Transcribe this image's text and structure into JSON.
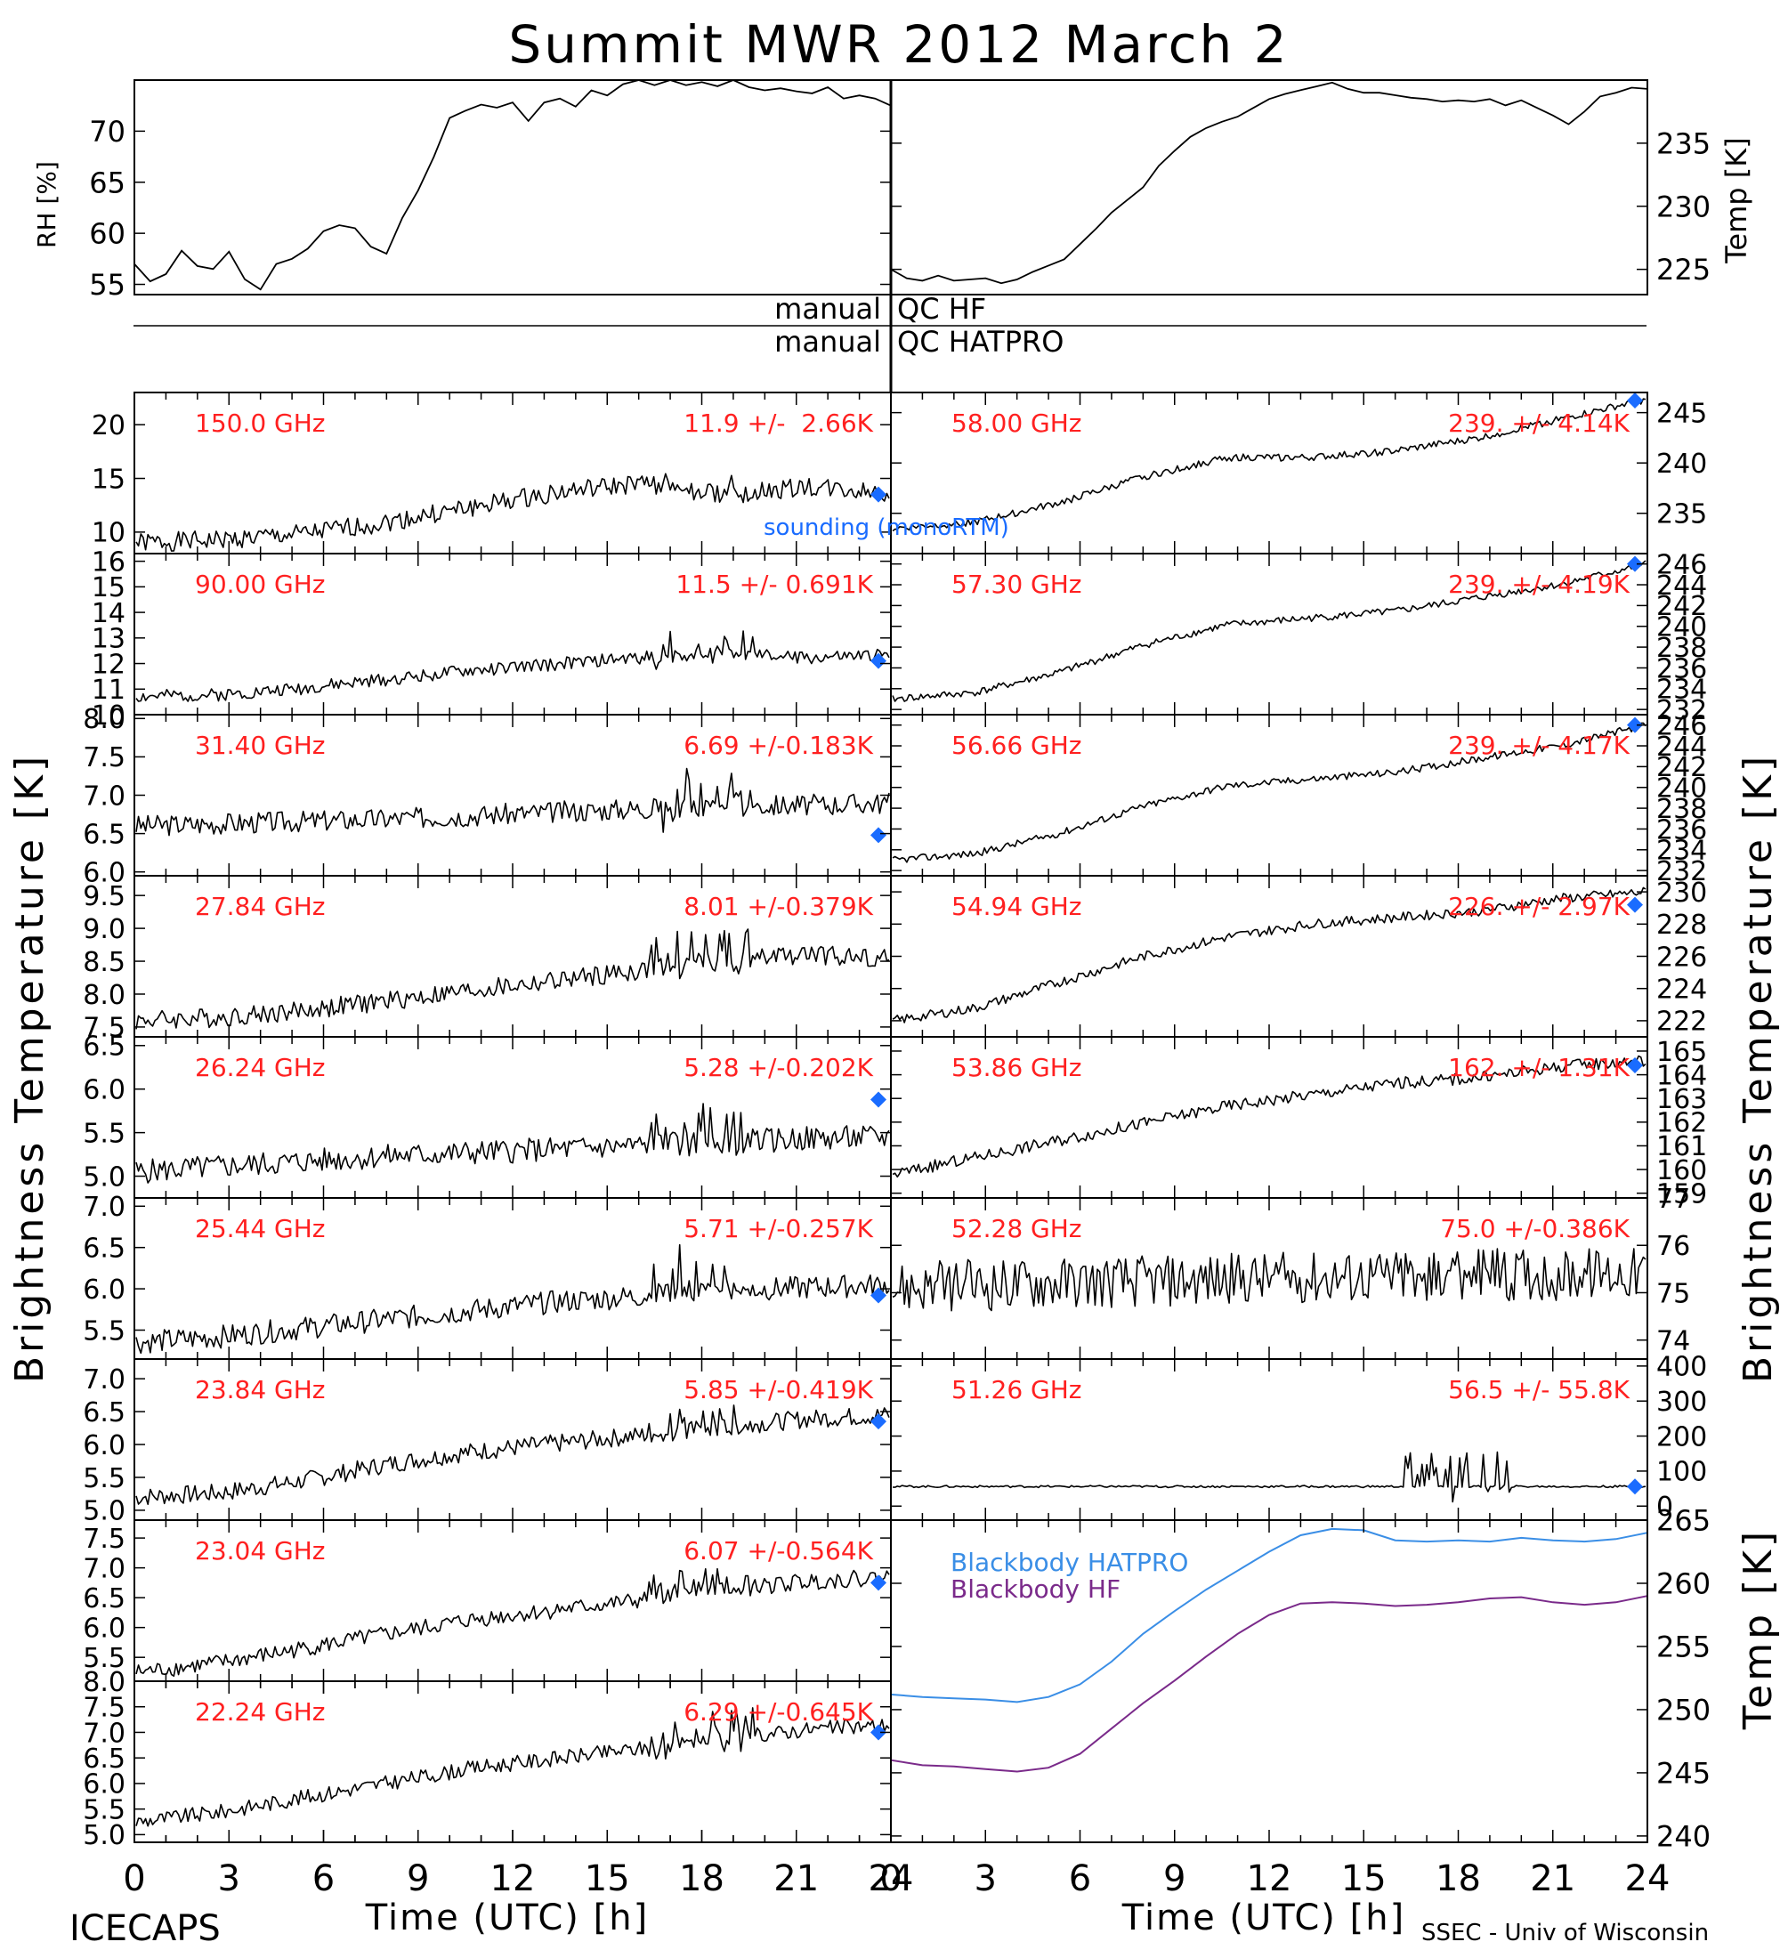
{
  "title": "Summit MWR 2012 March  2",
  "colors": {
    "axis": "#000000",
    "label_red": "#ff2020",
    "sounding_blue": "#1a6cff",
    "bb_hatpro": "#3a8ee6",
    "bb_hf": "#7a2a8a"
  },
  "footer": {
    "left": "ICECAPS",
    "right": "SSEC - Univ of Wisconsin"
  },
  "qc": {
    "hf": {
      "left": "manual",
      "right": "QC HF"
    },
    "hatpro": {
      "left": "manual",
      "right": "QC HATPRO"
    }
  },
  "legend": {
    "sounding": "sounding (monoRTM)"
  },
  "axis_titles": {
    "rh": "RH [%]",
    "temp": "Temp [K]",
    "tb_left": "Brightness Temperature [K]",
    "tb_right": "Brightness Temperature [K]",
    "bb_temp": "Temp [K]",
    "time": "Time (UTC) [h]"
  },
  "chart_data": {
    "type": "line",
    "x_unit": "h (UTC)",
    "xlim": [
      0,
      24
    ],
    "x_ticks": [
      "0",
      "3",
      "6",
      "9",
      "12",
      "15",
      "18",
      "21",
      "24"
    ],
    "top": {
      "rh": {
        "ylabel": "RH [%]",
        "ylim": [
          54,
          75
        ],
        "ticks": [
          "55",
          "60",
          "65",
          "70"
        ],
        "x": [
          0,
          0.5,
          1,
          1.5,
          2,
          2.5,
          3,
          3.5,
          4,
          4.5,
          5,
          5.5,
          6,
          6.5,
          7,
          7.5,
          8,
          8.5,
          9,
          9.5,
          10,
          10.5,
          11,
          11.5,
          12,
          12.5,
          13,
          13.5,
          14,
          14.5,
          15,
          15.5,
          16,
          16.5,
          17,
          17.5,
          18,
          18.5,
          19,
          19.5,
          20,
          20.5,
          21,
          21.5,
          22,
          22.5,
          23,
          23.5,
          24
        ],
        "values": [
          57,
          55.3,
          56,
          58.3,
          56.8,
          56.5,
          58.2,
          55.5,
          54.5,
          57,
          57.5,
          58.5,
          60.2,
          60.8,
          60.5,
          58.7,
          58,
          61.5,
          64.2,
          67.5,
          71.3,
          72,
          72.6,
          72.3,
          72.8,
          71,
          72.8,
          73.2,
          72.4,
          74,
          73.5,
          74.6,
          75,
          74.5,
          75,
          74.5,
          74.8,
          74.4,
          75,
          74.3,
          74,
          74.2,
          73.9,
          73.7,
          74.3,
          73.2,
          73.5,
          73.2,
          72.5
        ]
      },
      "temp": {
        "ylabel": "Temp [K]",
        "ylim": [
          223,
          240
        ],
        "ticks": [
          "225",
          "230",
          "235"
        ],
        "x": [
          0,
          0.5,
          1,
          1.5,
          2,
          2.5,
          3,
          3.5,
          4,
          4.5,
          5,
          5.5,
          6,
          6.5,
          7,
          7.5,
          8,
          8.5,
          9,
          9.5,
          10,
          10.5,
          11,
          11.5,
          12,
          12.5,
          13,
          13.5,
          14,
          14.5,
          15,
          15.5,
          16,
          16.5,
          17,
          17.5,
          18,
          18.5,
          19,
          19.5,
          20,
          20.5,
          21,
          21.5,
          22,
          22.5,
          23,
          23.5,
          24
        ],
        "values": [
          225,
          224.3,
          224.1,
          224.5,
          224.1,
          224.2,
          224.3,
          223.9,
          224.2,
          224.8,
          225.3,
          225.8,
          227,
          228.2,
          229.5,
          230.5,
          231.5,
          233.2,
          234.4,
          235.5,
          236.2,
          236.7,
          237.1,
          237.8,
          238.5,
          238.9,
          239.2,
          239.5,
          239.8,
          239.3,
          239,
          239,
          238.8,
          238.6,
          238.5,
          238.3,
          238.4,
          238.3,
          238.5,
          238,
          238.4,
          237.8,
          237.2,
          236.5,
          237.5,
          238.7,
          239,
          239.4,
          239.3
        ]
      }
    },
    "channels_left": [
      {
        "freq": "150.0 GHz",
        "stat": "11.9 +/-  2.66K",
        "ylim": [
          8,
          23
        ],
        "ticks": [
          "10",
          "15",
          "20"
        ],
        "start": 9,
        "end": 14.5,
        "shape": [
          0,
          0.05,
          0.15,
          0.35,
          0.6,
          0.85,
          1.0,
          0.8,
          0.95,
          0.85
        ],
        "noise": 0.9,
        "spike": 3,
        "sounding": 13.5
      },
      {
        "freq": "90.00 GHz",
        "stat": "11.5 +/- 0.691K",
        "ylim": [
          10,
          16.3
        ],
        "ticks": [
          "10",
          "11",
          "12",
          "13",
          "14",
          "15",
          "16"
        ],
        "start": 10.7,
        "end": 12.4,
        "shape": [
          0,
          0.05,
          0.2,
          0.4,
          0.6,
          0.75,
          0.9,
          1.0,
          0.9,
          0.95
        ],
        "noise": 0.25,
        "spike": 1.5,
        "sounding": 12.1
      },
      {
        "freq": "31.40 GHz",
        "stat": "6.69 +/-0.183K",
        "ylim": [
          5.95,
          8.05
        ],
        "ticks": [
          "6.0",
          "6.5",
          "7.0",
          "7.5",
          "8.0"
        ],
        "start": 6.6,
        "end": 6.9,
        "shape": [
          0,
          0.1,
          0.2,
          0.3,
          0.45,
          0.6,
          0.75,
          0.85,
          0.9,
          1.0
        ],
        "noise": 0.14,
        "spike": 0.7,
        "sounding": 6.48
      },
      {
        "freq": "27.84 GHz",
        "stat": "8.01 +/-0.379K",
        "ylim": [
          7.35,
          9.8
        ],
        "ticks": [
          "7.5",
          "8.0",
          "8.5",
          "9.0",
          "9.5"
        ],
        "start": 7.6,
        "end": 8.6,
        "shape": [
          0,
          0.05,
          0.15,
          0.3,
          0.45,
          0.6,
          0.75,
          0.9,
          1.0,
          0.95
        ],
        "noise": 0.15,
        "spike": 0.8,
        "sounding": null
      },
      {
        "freq": "26.24 GHz",
        "stat": "5.28 +/-0.202K",
        "ylim": [
          4.75,
          6.6
        ],
        "ticks": [
          "5.0",
          "5.5",
          "6.0",
          "6.5"
        ],
        "start": 5.05,
        "end": 5.45,
        "shape": [
          0,
          0.15,
          0.3,
          0.45,
          0.55,
          0.65,
          0.75,
          0.85,
          0.95,
          1.0
        ],
        "noise": 0.14,
        "spike": 0.6,
        "sounding": 5.88
      },
      {
        "freq": "25.44 GHz",
        "stat": "5.71 +/-0.257K",
        "ylim": [
          5.15,
          7.1
        ],
        "ticks": [
          "5.5",
          "6.0",
          "6.5",
          "7.0"
        ],
        "start": 5.35,
        "end": 6.05,
        "shape": [
          0,
          0.1,
          0.25,
          0.4,
          0.55,
          0.7,
          0.8,
          0.9,
          0.95,
          1.0
        ],
        "noise": 0.14,
        "spike": 0.7,
        "sounding": 5.92
      },
      {
        "freq": "23.84 GHz",
        "stat": "5.85 +/-0.419K",
        "ylim": [
          4.85,
          7.3
        ],
        "ticks": [
          "5.0",
          "5.5",
          "6.0",
          "6.5",
          "7.0"
        ],
        "start": 5.2,
        "end": 6.45,
        "shape": [
          0,
          0.05,
          0.2,
          0.4,
          0.55,
          0.65,
          0.75,
          0.85,
          0.95,
          1.0
        ],
        "noise": 0.14,
        "spike": 0.7,
        "sounding": 6.35
      },
      {
        "freq": "23.04 GHz",
        "stat": "6.07 +/-0.564K",
        "ylim": [
          5.1,
          7.8
        ],
        "ticks": [
          "5.5",
          "6.0",
          "6.5",
          "7.0",
          "7.5"
        ],
        "start": 5.25,
        "end": 6.85,
        "shape": [
          0,
          0.1,
          0.25,
          0.4,
          0.55,
          0.65,
          0.75,
          0.85,
          0.95,
          1.0
        ],
        "noise": 0.14,
        "spike": 0.6,
        "sounding": 6.75
      },
      {
        "freq": "22.24 GHz",
        "stat": "6.29 +/-0.645K",
        "ylim": [
          4.85,
          8.0
        ],
        "ticks": [
          "5.0",
          "5.5",
          "6.0",
          "6.5",
          "7.0",
          "7.5",
          "8.0"
        ],
        "start": 5.25,
        "end": 7.15,
        "shape": [
          0,
          0.1,
          0.25,
          0.4,
          0.55,
          0.65,
          0.75,
          0.85,
          0.95,
          1.0
        ],
        "noise": 0.15,
        "spike": 0.7,
        "sounding": 7.0
      }
    ],
    "channels_right": [
      {
        "freq": "58.00 GHz",
        "stat": "239. +/- 4.14K",
        "ylim": [
          231,
          247
        ],
        "ticks": [
          "235",
          "240",
          "245"
        ],
        "start": 233.5,
        "end": 246.3,
        "shape": [
          0,
          0.05,
          0.2,
          0.4,
          0.55,
          0.55,
          0.6,
          0.7,
          0.85,
          1.0
        ],
        "noise": 0.35,
        "spike": 0,
        "sounding": 246.2
      },
      {
        "freq": "57.30 GHz",
        "stat": "239. +/- 4.19K",
        "ylim": [
          231.5,
          247
        ],
        "ticks": [
          "232",
          "234",
          "236",
          "238",
          "240",
          "242",
          "244",
          "246"
        ],
        "start": 233,
        "end": 246,
        "shape": [
          0,
          0.05,
          0.2,
          0.4,
          0.55,
          0.6,
          0.65,
          0.75,
          0.85,
          1.0
        ],
        "noise": 0.35,
        "spike": 0,
        "sounding": 246
      },
      {
        "freq": "56.66 GHz",
        "stat": "239. +/- 4.17K",
        "ylim": [
          231.5,
          247
        ],
        "ticks": [
          "232",
          "234",
          "236",
          "238",
          "240",
          "242",
          "244",
          "246"
        ],
        "start": 233,
        "end": 246,
        "shape": [
          0,
          0.05,
          0.2,
          0.4,
          0.55,
          0.6,
          0.65,
          0.75,
          0.85,
          1.0
        ],
        "noise": 0.35,
        "spike": 0,
        "sounding": 246
      },
      {
        "freq": "54.94 GHz",
        "stat": "226. +/- 2.97K",
        "ylim": [
          221,
          231
        ],
        "ticks": [
          "222",
          "224",
          "226",
          "228",
          "230"
        ],
        "start": 222,
        "end": 230,
        "shape": [
          0,
          0.1,
          0.3,
          0.5,
          0.65,
          0.75,
          0.8,
          0.85,
          0.95,
          1.0
        ],
        "noise": 0.3,
        "spike": 0,
        "sounding": 229.2
      },
      {
        "freq": "53.86 GHz",
        "stat": "162. +/- 1.31K",
        "ylim": [
          158.8,
          165.6
        ],
        "ticks": [
          "159",
          "160",
          "161",
          "162",
          "163",
          "164",
          "165"
        ],
        "start": 159.8,
        "end": 164.6,
        "shape": [
          0,
          0.15,
          0.3,
          0.45,
          0.6,
          0.7,
          0.8,
          0.85,
          0.95,
          1.0
        ],
        "noise": 0.25,
        "spike": 0,
        "sounding": 164.4
      },
      {
        "freq": "52.28 GHz",
        "stat": "75.0 +/-0.386K",
        "ylim": [
          73.6,
          77
        ],
        "ticks": [
          "74",
          "75",
          "76",
          "77"
        ],
        "start": 75.1,
        "end": 75.4,
        "shape": [
          0,
          0.2,
          0.4,
          0.5,
          0.6,
          0.7,
          0.8,
          0.9,
          0.95,
          1.0
        ],
        "noise": 0.55,
        "spike": 0.6,
        "sounding": null
      },
      {
        "freq": "51.26 GHz",
        "stat": "56.5 +/- 55.8K",
        "ylim": [
          -40,
          420
        ],
        "ticks": [
          "0",
          "100",
          "200",
          "300",
          "400"
        ],
        "start": 56,
        "end": 56,
        "shape": [
          0,
          0,
          0,
          0,
          0,
          0,
          0,
          0,
          0,
          0
        ],
        "noise": 3,
        "spike": 150,
        "sounding": 56
      }
    ],
    "blackbody": {
      "ylabel": "Temp [K]",
      "ylim": [
        239.5,
        265
      ],
      "ticks": [
        "240",
        "245",
        "250",
        "255",
        "260",
        "265"
      ],
      "series": [
        {
          "name": "Blackbody HATPRO",
          "x": [
            0,
            1,
            2,
            3,
            4,
            5,
            6,
            7,
            8,
            9,
            10,
            11,
            12,
            13,
            14,
            15,
            16,
            17,
            18,
            19,
            20,
            21,
            22,
            23,
            24
          ],
          "values": [
            251.2,
            251,
            250.9,
            250.8,
            250.6,
            251,
            252,
            253.8,
            256,
            257.8,
            259.5,
            261,
            262.5,
            263.8,
            264.3,
            264.2,
            263.4,
            263.3,
            263.4,
            263.3,
            263.6,
            263.4,
            263.3,
            263.5,
            264
          ]
        },
        {
          "name": "Blackbody HF",
          "x": [
            0,
            1,
            2,
            3,
            4,
            5,
            6,
            7,
            8,
            9,
            10,
            11,
            12,
            13,
            14,
            15,
            16,
            17,
            18,
            19,
            20,
            21,
            22,
            23,
            24
          ],
          "values": [
            246,
            245.6,
            245.5,
            245.3,
            245.1,
            245.4,
            246.5,
            248.5,
            250.5,
            252.3,
            254.2,
            256,
            257.5,
            258.4,
            258.5,
            258.4,
            258.2,
            258.3,
            258.5,
            258.8,
            258.9,
            258.5,
            258.3,
            258.5,
            259
          ]
        }
      ]
    }
  }
}
